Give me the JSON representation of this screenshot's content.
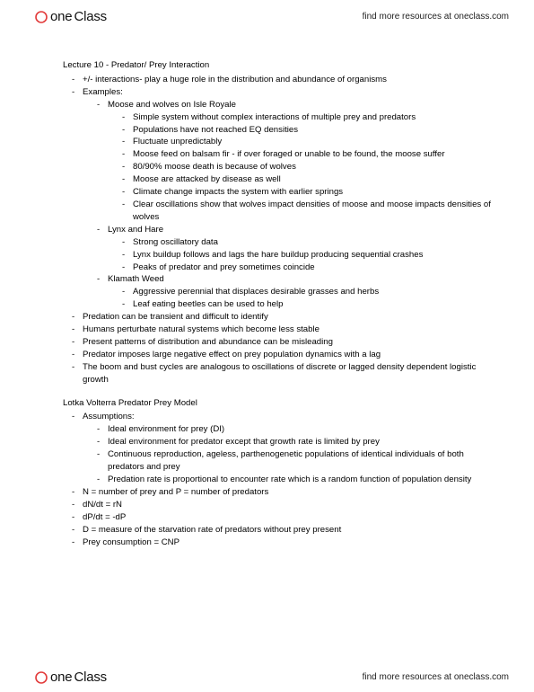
{
  "brand": {
    "one": "one",
    "class": "Class"
  },
  "tagline": "find more resources at oneclass.com",
  "title": "Lecture 10 - Predator/ Prey Interaction",
  "section2_title": "Lotka Volterra Predator Prey Model",
  "top": [
    {
      "text": "+/- interactions- play a huge role in the distribution and abundance of organisms"
    },
    {
      "text": "Examples:",
      "children": [
        {
          "text": "Moose and wolves on Isle Royale",
          "children": [
            {
              "text": "Simple system without complex interactions of multiple prey and predators"
            },
            {
              "text": "Populations have not reached EQ densities"
            },
            {
              "text": "Fluctuate unpredictably"
            },
            {
              "text": "Moose feed on balsam fir - if over foraged or unable to be found, the moose suffer"
            },
            {
              "text": "80/90% moose death is because of wolves"
            },
            {
              "text": "Moose are attacked by disease as well"
            },
            {
              "text": "Climate change impacts the system with earlier springs"
            },
            {
              "text": "Clear oscillations show that wolves impact densities of moose and moose impacts densities of wolves"
            }
          ]
        },
        {
          "text": "Lynx and Hare",
          "children": [
            {
              "text": "Strong oscillatory data"
            },
            {
              "text": "Lynx buildup follows and lags the hare buildup producing sequential crashes"
            },
            {
              "text": "Peaks of predator and prey sometimes coincide"
            }
          ]
        },
        {
          "text": "Klamath Weed",
          "children": [
            {
              "text": "Aggressive perennial that displaces desirable grasses and herbs"
            },
            {
              "text": "Leaf eating beetles can be used to help"
            }
          ]
        }
      ]
    },
    {
      "text": "Predation can be transient and difficult to identify"
    },
    {
      "text": "Humans perturbate natural systems which become less stable"
    },
    {
      "text": "Present patterns of distribution and abundance can be misleading"
    },
    {
      "text": "Predator imposes large negative effect on prey population dynamics with a lag"
    },
    {
      "text": "The boom and bust cycles are analogous to oscillations of discrete or lagged density dependent logistic growth"
    }
  ],
  "lv": [
    {
      "text": "Assumptions:",
      "children": [
        {
          "text": "Ideal environment for prey (DI)"
        },
        {
          "text": "Ideal environment for predator except that growth rate is limited by prey"
        },
        {
          "text": "Continuous reproduction, ageless, parthenogenetic populations of identical individuals of both predators and prey"
        },
        {
          "text": "Predation rate is proportional to encounter rate which is a random function of population density"
        }
      ]
    },
    {
      "text": "N = number of prey and P = number of predators"
    },
    {
      "text": "dN/dt = rN"
    },
    {
      "text": "dP/dt = -dP"
    },
    {
      "text": "D = measure of the starvation rate of predators without prey present"
    },
    {
      "text": "Prey consumption = CNP"
    }
  ]
}
